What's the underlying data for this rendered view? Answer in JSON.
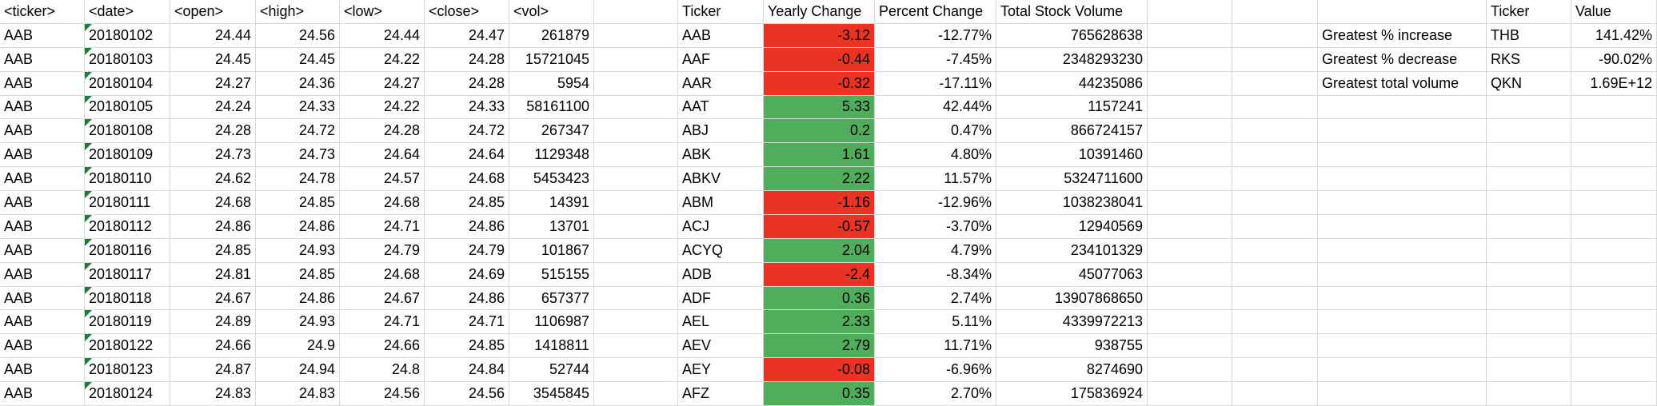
{
  "raw": {
    "columns": [
      "<ticker>",
      "<date>",
      "<open>",
      "<high>",
      "<low>",
      "<close>",
      "<vol>"
    ],
    "rows": [
      [
        "AAB",
        "20180102",
        "24.44",
        "24.56",
        "24.44",
        "24.47",
        "261879"
      ],
      [
        "AAB",
        "20180103",
        "24.45",
        "24.45",
        "24.22",
        "24.28",
        "15721045"
      ],
      [
        "AAB",
        "20180104",
        "24.27",
        "24.36",
        "24.27",
        "24.28",
        "5954"
      ],
      [
        "AAB",
        "20180105",
        "24.24",
        "24.33",
        "24.22",
        "24.33",
        "58161100"
      ],
      [
        "AAB",
        "20180108",
        "24.28",
        "24.72",
        "24.28",
        "24.72",
        "267347"
      ],
      [
        "AAB",
        "20180109",
        "24.73",
        "24.73",
        "24.64",
        "24.64",
        "1129348"
      ],
      [
        "AAB",
        "20180110",
        "24.62",
        "24.78",
        "24.57",
        "24.68",
        "5453423"
      ],
      [
        "AAB",
        "20180111",
        "24.68",
        "24.85",
        "24.68",
        "24.85",
        "14391"
      ],
      [
        "AAB",
        "20180112",
        "24.86",
        "24.86",
        "24.71",
        "24.86",
        "13701"
      ],
      [
        "AAB",
        "20180116",
        "24.85",
        "24.93",
        "24.79",
        "24.79",
        "101867"
      ],
      [
        "AAB",
        "20180117",
        "24.81",
        "24.85",
        "24.68",
        "24.69",
        "515155"
      ],
      [
        "AAB",
        "20180118",
        "24.67",
        "24.86",
        "24.67",
        "24.86",
        "657377"
      ],
      [
        "AAB",
        "20180119",
        "24.89",
        "24.93",
        "24.71",
        "24.71",
        "1106987"
      ],
      [
        "AAB",
        "20180122",
        "24.66",
        "24.9",
        "24.66",
        "24.85",
        "1418811"
      ],
      [
        "AAB",
        "20180123",
        "24.87",
        "24.94",
        "24.8",
        "24.84",
        "52744"
      ],
      [
        "AAB",
        "20180124",
        "24.83",
        "24.83",
        "24.56",
        "24.56",
        "3545845"
      ]
    ]
  },
  "summary": {
    "columns": [
      "Ticker",
      "Yearly Change",
      "Percent Change",
      "Total Stock Volume"
    ],
    "positive_color": "#4fad5b",
    "negative_color": "#ea3323",
    "rows": [
      [
        "AAB",
        "-3.12",
        "-12.77%",
        "765628638"
      ],
      [
        "AAF",
        "-0.44",
        "-7.45%",
        "2348293230"
      ],
      [
        "AAR",
        "-0.32",
        "-17.11%",
        "44235086"
      ],
      [
        "AAT",
        "5.33",
        "42.44%",
        "1157241"
      ],
      [
        "ABJ",
        "0.2",
        "0.47%",
        "866724157"
      ],
      [
        "ABK",
        "1.61",
        "4.80%",
        "10391460"
      ],
      [
        "ABKV",
        "2.22",
        "11.57%",
        "5324711600"
      ],
      [
        "ABM",
        "-1.16",
        "-12.96%",
        "1038238041"
      ],
      [
        "ACJ",
        "-0.57",
        "-3.70%",
        "12940569"
      ],
      [
        "ACYQ",
        "2.04",
        "4.79%",
        "234101329"
      ],
      [
        "ADB",
        "-2.4",
        "-8.34%",
        "45077063"
      ],
      [
        "ADF",
        "0.36",
        "2.74%",
        "13907868650"
      ],
      [
        "AEL",
        "2.33",
        "5.11%",
        "4339972213"
      ],
      [
        "AEV",
        "2.79",
        "11.71%",
        "938755"
      ],
      [
        "AEY",
        "-0.08",
        "-6.96%",
        "8274690"
      ],
      [
        "AFZ",
        "0.35",
        "2.70%",
        "175836924"
      ]
    ]
  },
  "greatest": {
    "columns": [
      "Ticker",
      "Value"
    ],
    "rows": [
      [
        "Greatest % increase",
        "THB",
        "141.42%"
      ],
      [
        "Greatest % decrease",
        "RKS",
        "-90.02%"
      ],
      [
        "Greatest total volume",
        "QKN",
        "1.69E+12"
      ]
    ]
  }
}
